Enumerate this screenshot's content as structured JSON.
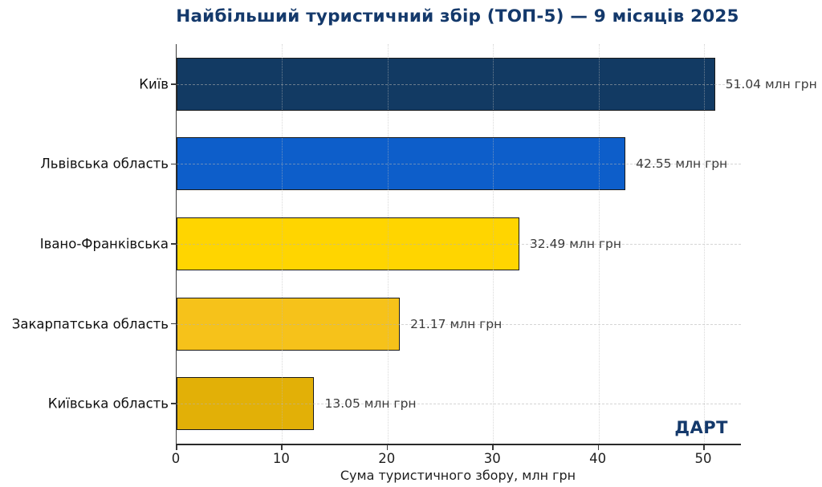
{
  "title": "Найбільший туристичний збір (ТОП-5) — 9 місяців 2025",
  "watermark": "ДАРТ",
  "colors": {
    "title": "#14396b",
    "bar_edge": "#1a1a1a",
    "value_label": "#3c3c3c"
  },
  "chart_data": {
    "type": "bar",
    "orientation": "horizontal",
    "title": "Найбільший туристичний збір (ТОП-5) — 9 місяців 2025",
    "categories": [
      "Київ",
      "Львівська область",
      "Івано-Франківська",
      "Закарпатська область",
      "Київська область"
    ],
    "values": [
      51.04,
      42.55,
      32.49,
      21.17,
      13.05
    ],
    "value_labels": [
      "51.04 млн грн",
      "42.55 млн грн",
      "32.49 млн грн",
      "21.17 млн грн",
      "13.05 млн грн"
    ],
    "bar_colors": [
      "#123a63",
      "#0d5eca",
      "#ffd500",
      "#f6c21a",
      "#e2b007"
    ],
    "xlabel": "Сума туристичного збору, млн грн",
    "xticks": [
      0,
      10,
      20,
      30,
      40,
      50
    ],
    "xlim": [
      0,
      53.5
    ],
    "grid": "dotted vertical lines at x ticks, dashed horizontal lines at category centers",
    "legend": "none",
    "annotation": "ДАРТ"
  }
}
